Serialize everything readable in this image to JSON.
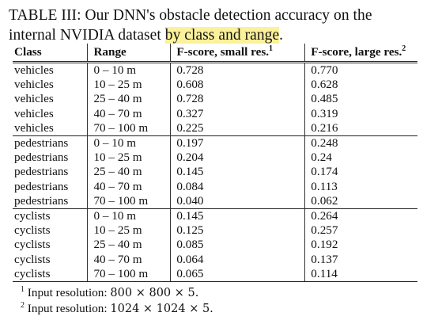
{
  "caption": {
    "prefix": "TABLE III: Our DNN's obstacle detection accuracy on the internal NVIDIA dataset ",
    "highlight": "by class and range",
    "suffix": ".",
    "highlight_color": "#fbf19a"
  },
  "table": {
    "headers": {
      "class": "Class",
      "range": "Range",
      "fscore_small": "F-score, small res.",
      "fscore_small_note": "1",
      "fscore_large": "F-score, large res.",
      "fscore_large_note": "2"
    },
    "groups": [
      {
        "rows": [
          {
            "class": "vehicles",
            "range": "0 – 10 m",
            "small": "0.728",
            "large": "0.770"
          },
          {
            "class": "vehicles",
            "range": "10 – 25 m",
            "small": "0.608",
            "large": "0.628"
          },
          {
            "class": "vehicles",
            "range": "25 – 40 m",
            "small": "0.728",
            "large": "0.485"
          },
          {
            "class": "vehicles",
            "range": "40 – 70 m",
            "small": "0.327",
            "large": "0.319"
          },
          {
            "class": "vehicles",
            "range": "70 – 100 m",
            "small": "0.225",
            "large": "0.216"
          }
        ]
      },
      {
        "rows": [
          {
            "class": "pedestrians",
            "range": "0 – 10 m",
            "small": "0.197",
            "large": "0.248"
          },
          {
            "class": "pedestrians",
            "range": "10 – 25 m",
            "small": "0.204",
            "large": "0.24"
          },
          {
            "class": "pedestrians",
            "range": "25 – 40 m",
            "small": "0.145",
            "large": "0.174"
          },
          {
            "class": "pedestrians",
            "range": "40 – 70 m",
            "small": "0.084",
            "large": "0.113"
          },
          {
            "class": "pedestrians",
            "range": "70 – 100 m",
            "small": "0.040",
            "large": "0.062"
          }
        ]
      },
      {
        "rows": [
          {
            "class": "cyclists",
            "range": "0 – 10 m",
            "small": "0.145",
            "large": "0.264"
          },
          {
            "class": "cyclists",
            "range": "10 – 25 m",
            "small": "0.125",
            "large": "0.257"
          },
          {
            "class": "cyclists",
            "range": "25 – 40 m",
            "small": "0.085",
            "large": "0.192"
          },
          {
            "class": "cyclists",
            "range": "40 – 70 m",
            "small": "0.064",
            "large": "0.137"
          },
          {
            "class": "cyclists",
            "range": "70 – 100 m",
            "small": "0.065",
            "large": "0.114"
          }
        ]
      }
    ]
  },
  "footnotes": [
    {
      "mark": "1",
      "text": "Input resolution: ",
      "math": "800 × 800 × 5."
    },
    {
      "mark": "2",
      "text": "Input resolution: ",
      "math": "1024 × 1024 × 5."
    }
  ]
}
